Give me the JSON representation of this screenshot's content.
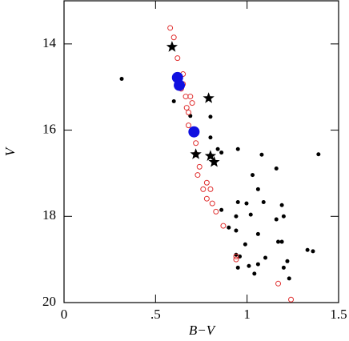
{
  "chart_data": {
    "type": "scatter",
    "x_label": "B−V",
    "y_label": "V",
    "xlim": [
      0,
      1.5
    ],
    "ylim": [
      20,
      13
    ],
    "xticks": [
      0,
      {
        "value": 0.5,
        "label": ".5"
      },
      1,
      1.5
    ],
    "yticks": [
      14,
      16,
      18,
      20
    ],
    "series": [
      {
        "marker": "dot",
        "color": "#000000",
        "x": [
          0.315,
          0.6,
          0.69,
          0.8,
          0.8,
          0.84,
          0.86,
          0.95,
          1.08,
          1.39,
          1.03,
          1.16,
          1.06,
          0.95,
          0.997,
          1.09,
          1.19,
          0.94,
          0.86,
          1.02,
          1.2,
          1.16,
          0.9,
          0.94,
          1.06,
          0.99,
          1.17,
          1.19,
          0.96,
          0.95,
          1.01,
          1.06,
          1.04,
          1.1,
          1.22,
          1.2,
          1.23,
          1.33,
          1.36,
          0.94
        ],
        "values": [
          14.81,
          15.33,
          15.67,
          15.69,
          16.17,
          16.44,
          16.52,
          16.44,
          16.57,
          16.56,
          17.04,
          16.89,
          17.37,
          17.67,
          17.7,
          17.67,
          17.74,
          18.0,
          17.85,
          17.96,
          18.0,
          18.07,
          18.26,
          18.33,
          18.41,
          18.65,
          18.59,
          18.59,
          18.93,
          19.19,
          19.15,
          19.11,
          19.33,
          18.96,
          19.04,
          19.19,
          19.44,
          18.78,
          18.81,
          18.89
        ]
      },
      {
        "marker": "open-circle",
        "color": "#e03030",
        "x": [
          0.58,
          0.6,
          0.62,
          0.65,
          0.65,
          0.64,
          0.665,
          0.67,
          0.69,
          0.68,
          0.7,
          0.68,
          0.7,
          0.72,
          0.72,
          0.74,
          0.73,
          0.78,
          0.76,
          0.8,
          0.78,
          0.81,
          0.83,
          0.87,
          0.94,
          0.94,
          1.17,
          1.24
        ],
        "values": [
          13.63,
          13.85,
          14.33,
          14.7,
          14.93,
          15.04,
          15.22,
          15.48,
          15.22,
          15.59,
          15.37,
          15.89,
          16.07,
          16.3,
          16.56,
          16.85,
          17.04,
          17.22,
          17.37,
          17.37,
          17.59,
          17.7,
          17.89,
          18.22,
          18.93,
          19.0,
          19.56,
          19.93
        ]
      },
      {
        "marker": "star",
        "color": "#000000",
        "x": [
          0.59,
          0.79,
          0.72,
          0.8,
          0.82
        ],
        "values": [
          14.07,
          15.26,
          16.56,
          16.6,
          16.74
        ]
      },
      {
        "marker": "big-circle",
        "color": "#1010e0",
        "x": [
          0.62,
          0.63,
          0.71
        ],
        "values": [
          14.78,
          14.96,
          16.04
        ]
      }
    ]
  }
}
